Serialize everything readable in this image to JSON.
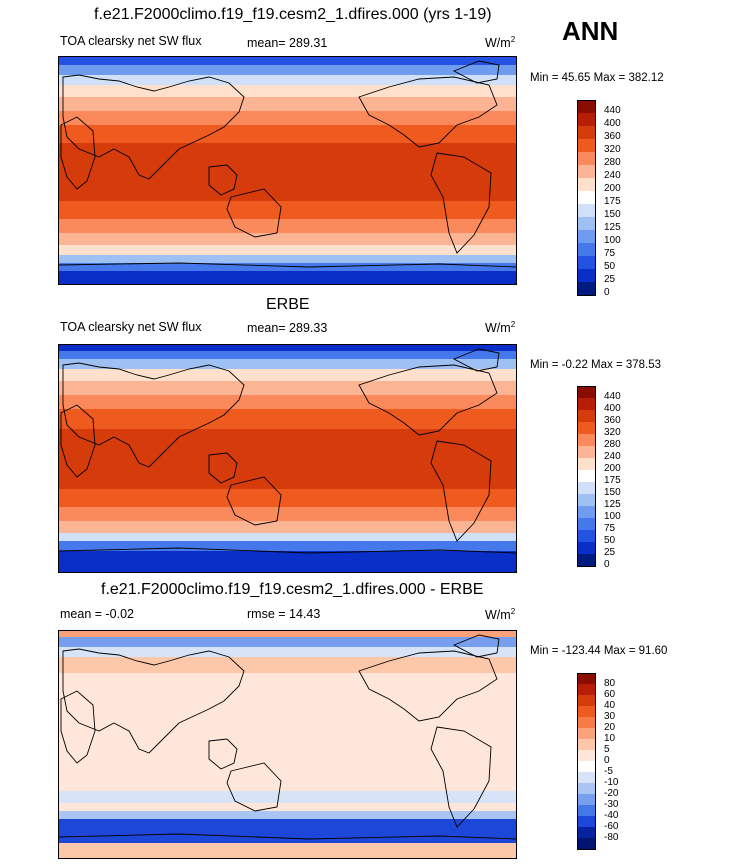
{
  "annotation": "ANN",
  "panels": [
    {
      "title": "f.e21.F2000climo.f19_f19.cesm2_1.dfires.000 (yrs 1-19)",
      "variable": "TOA clearsky net SW flux",
      "stat": "mean= 289.31",
      "units": "W/m",
      "units_exp": "2",
      "minmax": "Min =  45.65 Max = 382.12",
      "levels": [
        "440",
        "400",
        "360",
        "320",
        "280",
        "240",
        "200",
        "175",
        "150",
        "125",
        "100",
        "75",
        "50",
        "25",
        "0"
      ],
      "colors": [
        "#8b0d02",
        "#b71e05",
        "#d63b0c",
        "#ef5a1f",
        "#fa8a5c",
        "#fcb594",
        "#fee0cd",
        "#ffffff",
        "#cfe0f8",
        "#9fc0f3",
        "#6f9cef",
        "#4579eb",
        "#2453e3",
        "#0a2ec8",
        "#011a7e"
      ]
    },
    {
      "title": "ERBE",
      "variable": "TOA clearsky net SW flux",
      "stat": "mean= 289.33",
      "units": "W/m",
      "units_exp": "2",
      "minmax": "Min =  -0.22 Max = 378.53",
      "levels": [
        "440",
        "400",
        "360",
        "320",
        "280",
        "240",
        "200",
        "175",
        "150",
        "125",
        "100",
        "75",
        "50",
        "25",
        "0"
      ],
      "colors": [
        "#8b0d02",
        "#b71e05",
        "#d63b0c",
        "#ef5a1f",
        "#fa8a5c",
        "#fcb594",
        "#fee0cd",
        "#ffffff",
        "#cfe0f8",
        "#9fc0f3",
        "#6f9cef",
        "#4579eb",
        "#2453e3",
        "#0a2ec8",
        "#011a7e"
      ]
    },
    {
      "title": "f.e21.F2000climo.f19_f19.cesm2_1.dfires.000 - ERBE",
      "variable": "mean =  -0.02",
      "stat": "rmse =  14.43",
      "units": "W/m",
      "units_exp": "2",
      "minmax": "Min = -123.44 Max =  91.60",
      "levels": [
        "80",
        "60",
        "40",
        "30",
        "20",
        "10",
        "5",
        "0",
        "-5",
        "-10",
        "-20",
        "-30",
        "-40",
        "-60",
        "-80"
      ],
      "colors": [
        "#8b0d02",
        "#b71e05",
        "#d63b0c",
        "#ef5a1f",
        "#f87a46",
        "#fba27a",
        "#fdc7aa",
        "#fee7da",
        "#ffffff",
        "#d7e4f8",
        "#a9c5f3",
        "#779fee",
        "#4677e9",
        "#1d47d8",
        "#07229e",
        "#011570"
      ]
    }
  ]
}
